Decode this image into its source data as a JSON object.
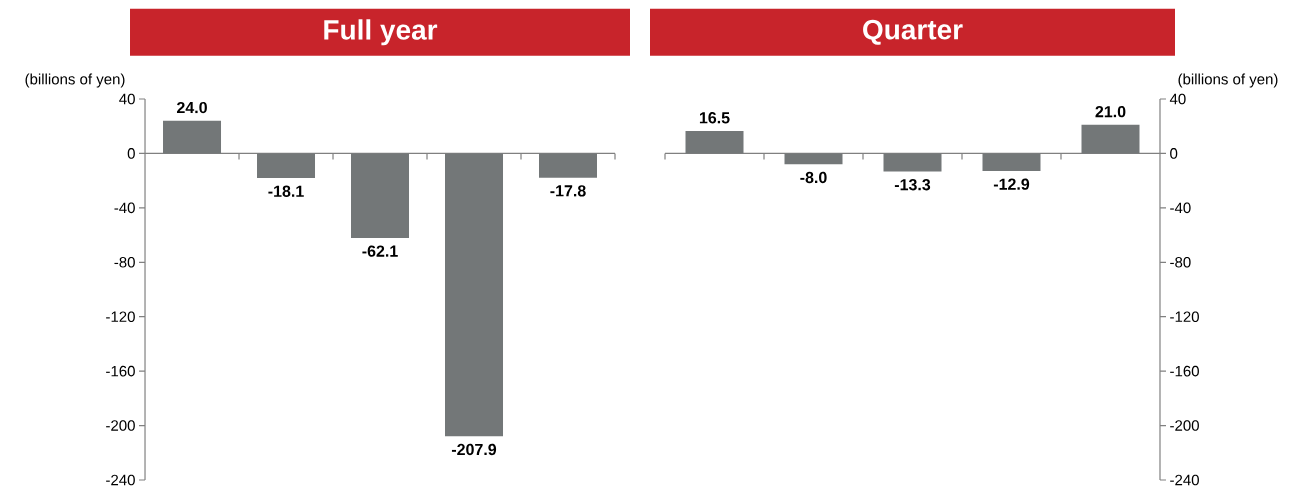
{
  "chart_data": [
    {
      "type": "bar",
      "title": "Full year",
      "ylabel": "(billions of yen)",
      "categories": [
        null,
        null,
        null,
        null,
        null
      ],
      "series": [
        {
          "color": "#737778",
          "values": [
            24.0,
            -18.1,
            -62.1,
            -207.9,
            -17.8
          ],
          "value_labels": [
            "24.0",
            "-18.1",
            "-62.1",
            "-207.9",
            "-17.8"
          ]
        }
      ],
      "ylim": [
        -240,
        40
      ],
      "yticks": [
        40,
        0,
        -40,
        -80,
        -120,
        -160,
        -200,
        -240
      ]
    },
    {
      "type": "bar",
      "title": "Quarter",
      "y2label": "(billions of yen)",
      "categories": [
        null,
        null,
        null,
        null,
        null
      ],
      "series": [
        {
          "color": "#737778",
          "axis": "y2",
          "values": [
            16.5,
            -8.0,
            -13.3,
            -12.9,
            21.0
          ],
          "value_labels": [
            "16.5",
            "-8.0",
            "-13.3",
            "-12.9",
            "21.0"
          ]
        }
      ],
      "y2lim": [
        -240,
        40
      ],
      "y2ticks": [
        40,
        0,
        -40,
        -80,
        -120,
        -160,
        -200,
        -240
      ]
    }
  ]
}
